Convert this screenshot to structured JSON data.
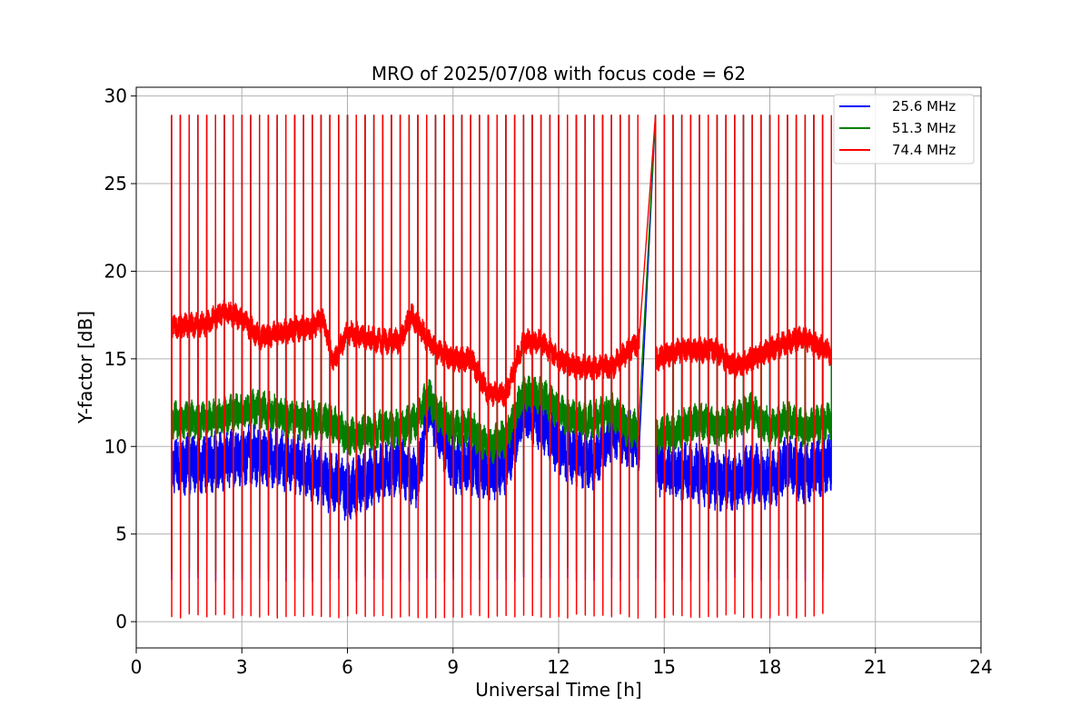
{
  "chart_data": {
    "type": "line",
    "title": "MRO of 2025/07/08 with focus code = 62",
    "xlabel": "Universal Time [h]",
    "ylabel": "Y-factor [dB]",
    "xlim": [
      0,
      24
    ],
    "ylim": [
      -1.5,
      30.5
    ],
    "xticks": [
      0,
      3,
      6,
      9,
      12,
      15,
      18,
      21,
      24
    ],
    "yticks": [
      0,
      5,
      10,
      15,
      20,
      25,
      30
    ],
    "grid": true,
    "legend_position": "top-right",
    "gap_hours": [
      14.3,
      14.75
    ],
    "calibration_cycle": {
      "start_h": 1.0,
      "period_h": 0.25,
      "end_h": 19.75,
      "high_db": 28.9,
      "low_db": 0.2
    },
    "series": [
      {
        "name": "25.6 MHz",
        "color": "#0000ff",
        "baseline": {
          "x": [
            1.0,
            2.0,
            3.0,
            3.5,
            4.5,
            5.5,
            6.0,
            7.0,
            7.5,
            8.0,
            8.3,
            8.5,
            9.0,
            9.5,
            10.0,
            10.5,
            11.0,
            11.5,
            12.0,
            12.5,
            13.0,
            13.5,
            14.0,
            14.3,
            14.75,
            15.5,
            16.0,
            16.5,
            17.0,
            17.5,
            18.0,
            18.5,
            19.0,
            19.75
          ],
          "y": [
            9.0,
            9.0,
            9.5,
            9.5,
            9.0,
            8.0,
            7.5,
            8.5,
            9.0,
            8.0,
            12.5,
            11.5,
            9.0,
            9.0,
            8.5,
            9.0,
            12.0,
            11.5,
            10.0,
            9.5,
            9.0,
            11.0,
            10.5,
            10.0,
            9.0,
            8.5,
            8.5,
            8.0,
            8.0,
            8.5,
            8.0,
            9.0,
            8.5,
            9.0
          ]
        },
        "noise_db": 1.4,
        "floor_db": 2.3
      },
      {
        "name": "51.3 MHz",
        "color": "#008000",
        "baseline": {
          "x": [
            1.0,
            2.0,
            3.0,
            3.5,
            4.5,
            5.5,
            6.0,
            7.0,
            7.5,
            8.0,
            8.3,
            8.5,
            9.0,
            9.5,
            10.0,
            10.5,
            11.0,
            11.5,
            12.0,
            12.5,
            13.0,
            13.5,
            14.0,
            14.3,
            14.75,
            15.5,
            16.0,
            16.5,
            17.0,
            17.5,
            18.0,
            18.5,
            19.0,
            19.75
          ],
          "y": [
            11.5,
            11.5,
            12.0,
            12.2,
            11.5,
            11.5,
            10.5,
            11.0,
            11.0,
            11.5,
            13.0,
            12.0,
            11.0,
            11.0,
            10.0,
            10.5,
            13.0,
            13.0,
            12.0,
            11.5,
            11.5,
            12.0,
            11.0,
            11.0,
            10.5,
            11.0,
            11.5,
            11.0,
            11.5,
            12.0,
            11.0,
            11.5,
            11.0,
            11.5
          ]
        },
        "noise_db": 0.9,
        "floor_db": 2.8
      },
      {
        "name": "74.4 MHz",
        "color": "#ff0000",
        "baseline": {
          "x": [
            1.0,
            2.0,
            2.5,
            3.0,
            3.5,
            4.5,
            5.0,
            5.3,
            5.6,
            6.0,
            7.0,
            7.5,
            7.8,
            8.0,
            8.3,
            8.5,
            9.0,
            9.5,
            10.0,
            10.5,
            11.0,
            11.5,
            12.0,
            12.5,
            13.0,
            13.5,
            14.0,
            14.3,
            14.75,
            15.5,
            16.0,
            16.5,
            17.0,
            17.5,
            18.0,
            18.5,
            19.0,
            19.75
          ],
          "y": [
            16.8,
            17.0,
            17.7,
            17.3,
            16.2,
            16.7,
            16.8,
            17.3,
            14.8,
            16.5,
            16.0,
            16.0,
            17.5,
            17.0,
            16.0,
            15.5,
            15.0,
            15.0,
            13.0,
            13.0,
            16.0,
            16.0,
            15.0,
            14.5,
            14.5,
            14.5,
            15.5,
            16.0,
            15.0,
            15.5,
            15.5,
            15.5,
            14.5,
            15.0,
            15.5,
            16.0,
            16.2,
            15.3
          ]
        },
        "noise_db": 0.6,
        "floor_db": 0.2
      }
    ]
  }
}
